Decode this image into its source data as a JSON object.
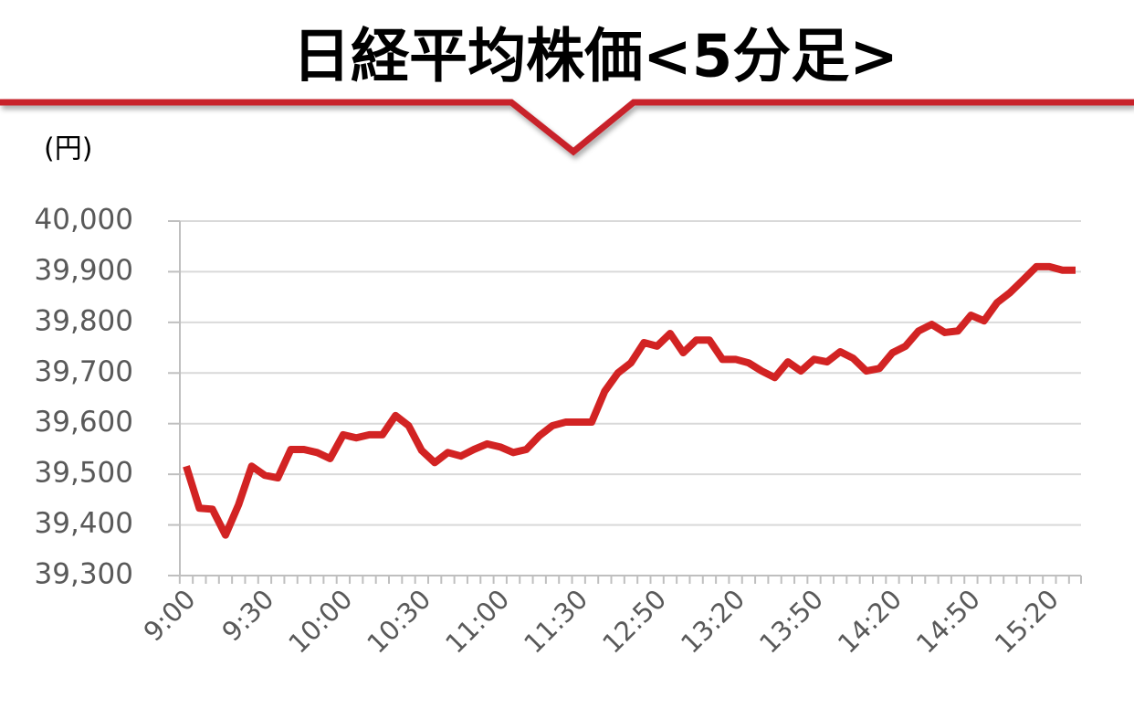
{
  "chart_data": {
    "type": "line",
    "title": "日経平均株価<5分足>",
    "y_label": "(円)",
    "categories": [
      "9:00",
      null,
      null,
      null,
      null,
      null,
      "9:30",
      null,
      null,
      null,
      null,
      null,
      "10:00",
      null,
      null,
      null,
      null,
      null,
      "10:30",
      null,
      null,
      null,
      null,
      null,
      "11:00",
      null,
      null,
      null,
      null,
      null,
      "11:30",
      null,
      null,
      null,
      null,
      null,
      "12:50",
      null,
      null,
      null,
      null,
      null,
      "13:20",
      null,
      null,
      null,
      null,
      null,
      "13:50",
      null,
      null,
      null,
      null,
      null,
      "14:20",
      null,
      null,
      null,
      null,
      null,
      "14:50",
      null,
      null,
      null,
      null,
      null,
      "15:20",
      null,
      null
    ],
    "series": [
      {
        "color": "#d22323",
        "values": [
          39516,
          39433,
          39431,
          39380,
          39440,
          39516,
          39498,
          39493,
          39549,
          39549,
          39543,
          39531,
          39578,
          39572,
          39578,
          39578,
          39616,
          39596,
          39547,
          39523,
          39543,
          39536,
          39549,
          39560,
          39554,
          39543,
          39549,
          39576,
          39596,
          39603,
          39603,
          39603,
          39664,
          39700,
          39720,
          39760,
          39753,
          39778,
          39740,
          39765,
          39765,
          39727,
          39727,
          39720,
          39704,
          39691,
          39722,
          39704,
          39727,
          39722,
          39742,
          39729,
          39704,
          39709,
          39740,
          39753,
          39783,
          39796,
          39780,
          39783,
          39814,
          39803,
          39839,
          39859,
          39884,
          39910,
          39910,
          39903,
          39903
        ]
      }
    ],
    "ylim": [
      39300,
      40000
    ],
    "yticks": [
      {
        "value": 39300,
        "label": "39,300"
      },
      {
        "value": 39400,
        "label": "39,400"
      },
      {
        "value": 39500,
        "label": "39,500"
      },
      {
        "value": 39600,
        "label": "39,600"
      },
      {
        "value": 39700,
        "label": "39,700"
      },
      {
        "value": 39800,
        "label": "39,800"
      },
      {
        "value": 39900,
        "label": "39,900"
      },
      {
        "value": 40000,
        "label": "40,000"
      }
    ],
    "grid": true
  }
}
